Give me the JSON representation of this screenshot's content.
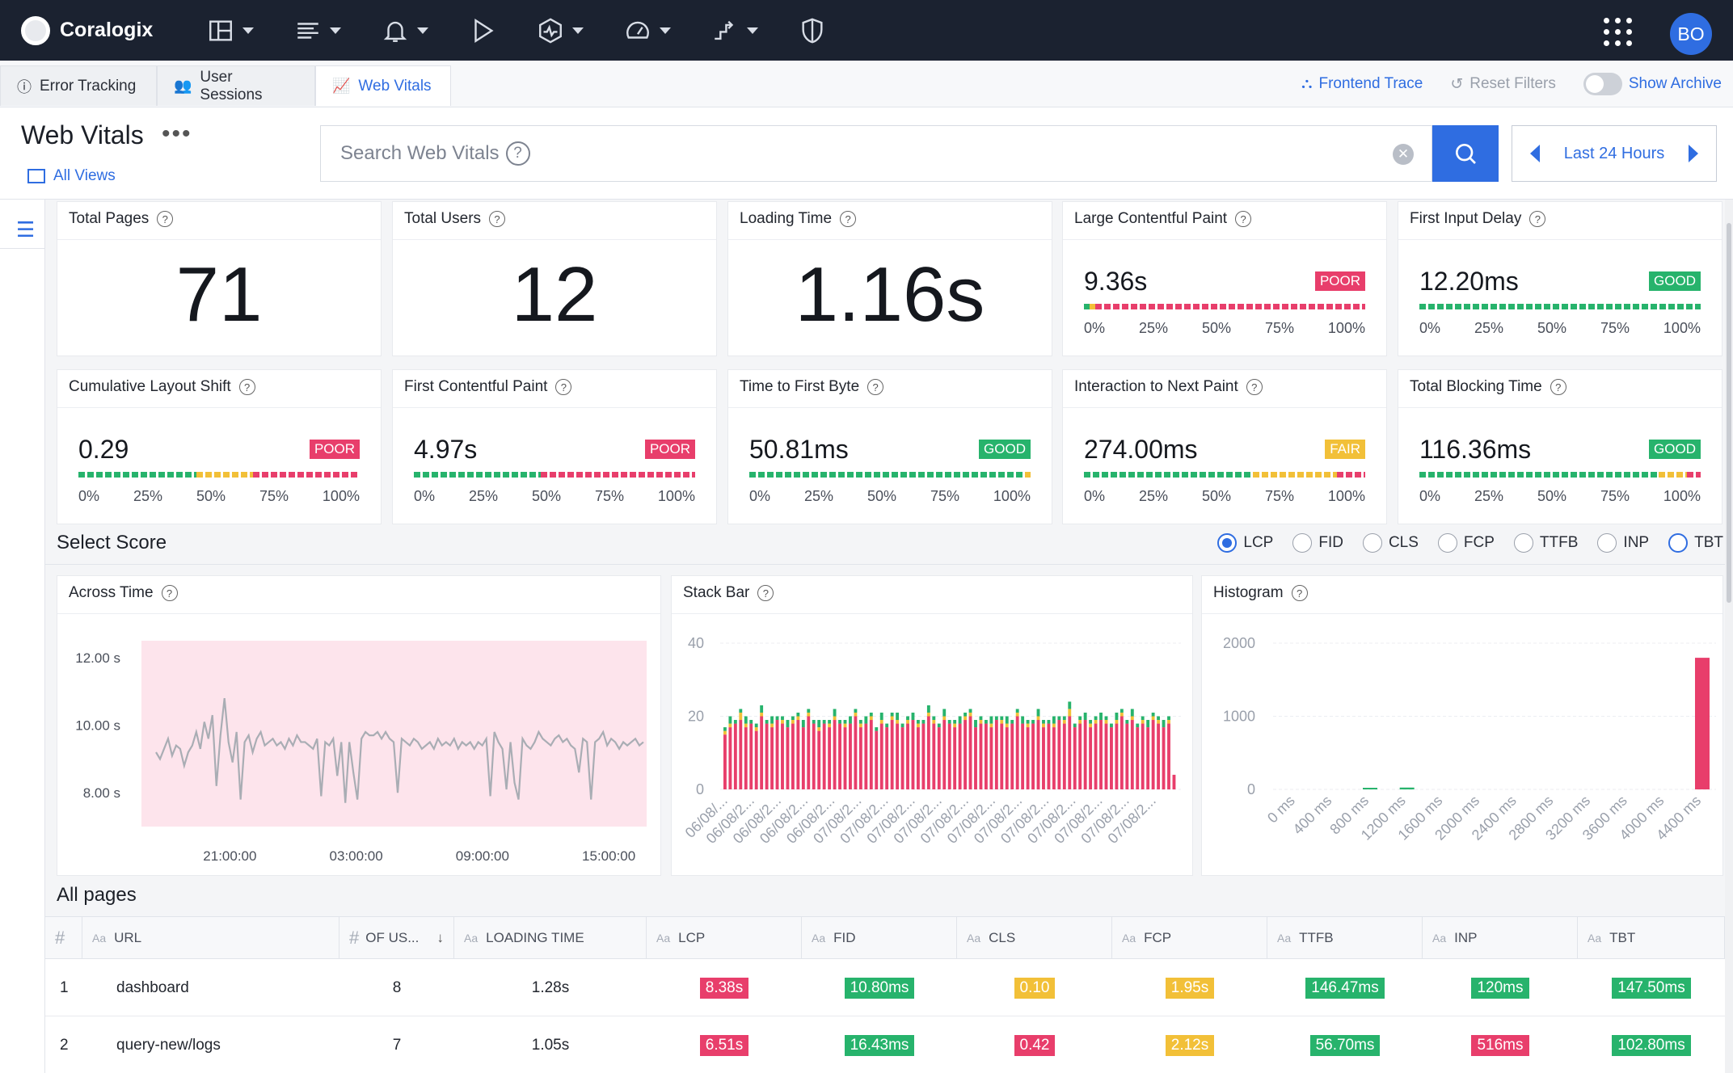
{
  "app": {
    "logo_text": "Coralogix",
    "avatar_initials": "BO"
  },
  "nav_icons": [
    "dashboards-icon",
    "logs-icon",
    "alerts-icon",
    "play-icon",
    "apm-icon",
    "speedometer-icon",
    "flow-icon",
    "shield-icon"
  ],
  "tabs": [
    {
      "label": "Error Tracking",
      "icon": "alert-circle-icon"
    },
    {
      "label": "User Sessions",
      "icon": "users-icon"
    },
    {
      "label": "Web Vitals",
      "icon": "chart-line-icon",
      "active": true
    }
  ],
  "right_links": {
    "frontend_trace": "Frontend Trace",
    "reset_filters": "Reset Filters",
    "show_archive": "Show Archive"
  },
  "header": {
    "title": "Web Vitals",
    "more": "•••",
    "all_views": "All Views"
  },
  "search": {
    "placeholder": "Search Web Vitals",
    "help": "?"
  },
  "time_range": {
    "label": "Last 24 Hours"
  },
  "summary_cards": [
    {
      "title": "Total Pages",
      "value": "71"
    },
    {
      "title": "Total Users",
      "value": "12"
    },
    {
      "title": "Loading Time",
      "value": "1.16s"
    }
  ],
  "vital_cards": [
    {
      "title": "Large Contentful Paint",
      "value": "9.36s",
      "status": "POOR",
      "good": 0.02,
      "fair": 0.02,
      "poor": 0.96
    },
    {
      "title": "First Input Delay",
      "value": "12.20ms",
      "status": "GOOD",
      "good": 1.0,
      "fair": 0,
      "poor": 0
    },
    {
      "title": "Cumulative Layout Shift",
      "value": "0.29",
      "status": "POOR",
      "good": 0.42,
      "fair": 0.2,
      "poor": 0.38
    },
    {
      "title": "First Contentful Paint",
      "value": "4.97s",
      "status": "POOR",
      "good": 0.45,
      "fair": 0.0,
      "poor": 0.55
    },
    {
      "title": "Time to First Byte",
      "value": "50.81ms",
      "status": "GOOD",
      "good": 0.98,
      "fair": 0.02,
      "poor": 0
    },
    {
      "title": "Interaction to Next Paint",
      "value": "274.00ms",
      "status": "FAIR",
      "good": 0.6,
      "fair": 0.3,
      "poor": 0.1
    },
    {
      "title": "Total Blocking Time",
      "value": "116.36ms",
      "status": "GOOD",
      "good": 0.85,
      "fair": 0.1,
      "poor": 0.05
    }
  ],
  "bar_ticks": [
    "0%",
    "25%",
    "50%",
    "75%",
    "100%"
  ],
  "colors": {
    "good": "#27b36c",
    "fair": "#f2c038",
    "poor": "#e83e6b",
    "accent": "#2f6de1",
    "nav_bg": "#1b2230"
  },
  "select_score": {
    "title": "Select Score",
    "options": [
      "LCP",
      "FID",
      "CLS",
      "FCP",
      "TTFB",
      "INP",
      "TBT"
    ],
    "selected": "LCP"
  },
  "chart_data": [
    {
      "type": "line",
      "title": "Across Time",
      "ylim": [
        7,
        12.5
      ],
      "yticks": [
        "12.00 s",
        "10.00 s",
        "8.00 s"
      ],
      "xticks": [
        "21:00:00",
        "03:00:00",
        "09:00:00",
        "15:00:00"
      ],
      "series": [
        {
          "values": [
            9.2,
            9.0,
            9.3,
            9.6,
            9.1,
            9.4,
            9.3,
            8.8,
            9.2,
            9.4,
            9.8,
            9.3,
            10.1,
            9.6,
            10.3,
            8.2,
            9.7,
            10.8,
            9.5,
            8.9,
            9.8,
            7.8,
            9.5,
            9.7,
            9.2,
            9.6,
            9.8,
            9.4,
            9.5,
            9.6,
            9.4,
            9.5,
            9.3,
            9.6,
            9.4,
            9.7,
            9.5,
            9.5,
            9.4,
            9.3,
            9.6,
            7.9,
            9.5,
            9.4,
            9.6,
            8.5,
            9.5,
            7.7,
            9.5,
            8.6,
            7.8,
            9.6,
            9.8,
            9.7,
            9.7,
            9.8,
            9.6,
            9.8,
            9.6,
            9.5,
            8.0,
            9.6,
            9.5,
            9.4,
            9.6,
            9.5,
            9.3,
            9.4,
            9.5,
            9.3,
            9.6,
            9.4,
            9.5,
            9.4,
            9.6,
            9.3,
            9.5,
            9.4,
            9.5,
            9.3,
            9.5,
            9.4,
            9.6,
            7.9,
            9.8,
            9.5,
            9.3,
            8.1,
            9.5,
            8.3,
            7.8,
            9.6,
            9.4,
            9.3,
            9.5,
            9.8,
            9.6,
            9.5,
            9.4,
            9.6,
            9.7,
            9.5,
            9.6,
            9.4,
            9.3,
            8.6,
            9.6,
            9.5,
            7.8,
            9.5,
            9.6,
            9.8,
            9.4,
            9.6,
            9.5,
            9.3,
            9.5,
            9.4,
            9.5,
            9.6,
            9.4,
            9.5
          ]
        }
      ]
    },
    {
      "type": "bar",
      "title": "Stack Bar",
      "ylim": [
        0,
        40
      ],
      "yticks": [
        "40",
        "20",
        "0"
      ],
      "xticks": [
        "06/08/...",
        "06/08/2...",
        "06/08/2...",
        "06/08/2...",
        "06/08/2...",
        "07/08/2...",
        "07/08/2...",
        "07/08/2...",
        "07/08/2...",
        "07/08/2...",
        "07/08/2...",
        "07/08/2...",
        "07/08/2...",
        "07/08/2...",
        "07/08/2...",
        "07/08/2...",
        "07/08/2..."
      ],
      "series": [
        {
          "name": "poor",
          "values": [
            15,
            17,
            18,
            19,
            17,
            18,
            16,
            20,
            18,
            17,
            19,
            18,
            17,
            18,
            19,
            17,
            20,
            18,
            16,
            18,
            17,
            19,
            18,
            17,
            18,
            20,
            17,
            18,
            19,
            16,
            18,
            17,
            19,
            18,
            17,
            18,
            19,
            17,
            18,
            20,
            18,
            17,
            19,
            18,
            17,
            18,
            19,
            20,
            17,
            18,
            18,
            17,
            19,
            18,
            17,
            18,
            20,
            18,
            17,
            18,
            19,
            17,
            18,
            17,
            19,
            18,
            20,
            17,
            18,
            19,
            17,
            18,
            19,
            18,
            17,
            18,
            20,
            18,
            19,
            17,
            18,
            17,
            19,
            18,
            17,
            18,
            4
          ]
        },
        {
          "name": "fair",
          "values": [
            1,
            1,
            0,
            2,
            1,
            0,
            1,
            1,
            0,
            1,
            0,
            1,
            0,
            1,
            1,
            0,
            1,
            0,
            1,
            0,
            1,
            1,
            0,
            1,
            0,
            1,
            1,
            0,
            1,
            0,
            1,
            0,
            1,
            1,
            0,
            1,
            0,
            1,
            0,
            1,
            1,
            0,
            1,
            0,
            1,
            0,
            1,
            1,
            0,
            1,
            0,
            1,
            0,
            1,
            1,
            0,
            1,
            0,
            1,
            0,
            1,
            1,
            0,
            1,
            0,
            1,
            2,
            0,
            1,
            0,
            1,
            1,
            0,
            1,
            0,
            1,
            1,
            0,
            1,
            0,
            1,
            0,
            1,
            1,
            0,
            1,
            0
          ]
        },
        {
          "name": "good",
          "values": [
            1,
            2,
            1,
            1,
            2,
            1,
            1,
            2,
            1,
            2,
            1,
            1,
            2,
            1,
            1,
            2,
            1,
            1,
            2,
            1,
            1,
            2,
            1,
            1,
            2,
            1,
            1,
            2,
            1,
            1,
            2,
            1,
            1,
            2,
            1,
            1,
            2,
            1,
            1,
            2,
            1,
            1,
            2,
            1,
            1,
            2,
            1,
            1,
            2,
            1,
            1,
            2,
            1,
            1,
            2,
            1,
            1,
            2,
            1,
            1,
            2,
            1,
            1,
            2,
            1,
            1,
            2,
            1,
            1,
            2,
            1,
            1,
            2,
            1,
            1,
            2,
            1,
            1,
            2,
            1,
            1,
            2,
            1,
            1,
            2,
            1,
            0
          ]
        }
      ]
    },
    {
      "type": "bar",
      "title": "Histogram",
      "ylim": [
        0,
        2000
      ],
      "yticks": [
        "2000",
        "1000",
        "0"
      ],
      "categories": [
        "0 ms",
        "400 ms",
        "800 ms",
        "1200 ms",
        "1600 ms",
        "2000 ms",
        "2400 ms",
        "2800 ms",
        "3200 ms",
        "3600 ms",
        "4000 ms",
        "4400 ms"
      ],
      "values": [
        0,
        0,
        15,
        25,
        0,
        0,
        0,
        0,
        0,
        0,
        0,
        1800
      ]
    }
  ],
  "table": {
    "title": "All pages",
    "columns": [
      "#",
      "URL",
      "OF US...",
      "LOADING TIME",
      "LCP",
      "FID",
      "CLS",
      "FCP",
      "TTFB",
      "INP",
      "TBT"
    ],
    "rows": [
      {
        "num": "1",
        "url": "dashboard",
        "users": "8",
        "loading": "1.28s",
        "lcp": "8.38s",
        "fid": "10.80ms",
        "cls": "0.10",
        "fcp": "1.95s",
        "ttfb": "146.47ms",
        "inp": "120ms",
        "tbt": "147.50ms",
        "status": {
          "lcp": "poor",
          "fid": "good",
          "cls": "fair",
          "fcp": "fair",
          "ttfb": "good",
          "inp": "good",
          "tbt": "good"
        }
      },
      {
        "num": "2",
        "url": "query-new/logs",
        "users": "7",
        "loading": "1.05s",
        "lcp": "6.51s",
        "fid": "16.43ms",
        "cls": "0.42",
        "fcp": "2.12s",
        "ttfb": "56.70ms",
        "inp": "516ms",
        "tbt": "102.80ms",
        "status": {
          "lcp": "poor",
          "fid": "good",
          "cls": "poor",
          "fcp": "fair",
          "ttfb": "good",
          "inp": "poor",
          "tbt": "good"
        }
      }
    ]
  }
}
